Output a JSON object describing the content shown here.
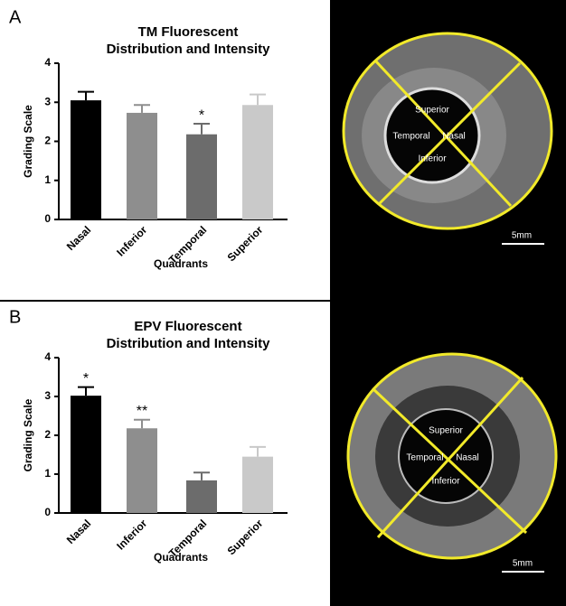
{
  "panel_labels": [
    "A",
    "B"
  ],
  "chart_data": [
    {
      "type": "bar",
      "title": [
        "TM Fluorescent",
        "Distribution and Intensity"
      ],
      "x_label": "Quadrants",
      "y_label": "Grading Scale",
      "categories": [
        "Nasal",
        "Inferior",
        "Temporal",
        "Superior"
      ],
      "values": [
        3.05,
        2.73,
        2.18,
        2.93
      ],
      "errors": [
        0.22,
        0.2,
        0.27,
        0.27
      ],
      "value_annotations": [
        null,
        null,
        "*",
        null
      ],
      "colors": [
        "#000000",
        "#8e8e8e",
        "#6c6c6c",
        "#c9c9c9"
      ],
      "ylim": [
        0,
        4
      ],
      "yticks": [
        0,
        1,
        2,
        3,
        4
      ]
    },
    {
      "type": "bar",
      "title": [
        "EPV Fluorescent",
        "Distribution and Intensity"
      ],
      "x_label": "Quadrants",
      "y_label": "Grading Scale",
      "categories": [
        "Nasal",
        "Inferior",
        "Temporal",
        "Superior"
      ],
      "values": [
        3.02,
        2.18,
        0.84,
        1.45
      ],
      "errors": [
        0.22,
        0.22,
        0.2,
        0.25
      ],
      "value_annotations": [
        "*",
        "**",
        null,
        null
      ],
      "colors": [
        "#000000",
        "#8e8e8e",
        "#6c6c6c",
        "#c9c9c9"
      ],
      "ylim": [
        0,
        4
      ],
      "yticks": [
        0,
        1,
        2,
        3,
        4
      ]
    }
  ],
  "images": [
    {
      "labels": [
        "Superior",
        "Temporal",
        "Nasal",
        "Inferior"
      ],
      "scale_bar": "5mm"
    },
    {
      "labels": [
        "Superior",
        "Temporal",
        "Nasal",
        "Inferior"
      ],
      "scale_bar": "5mm"
    }
  ]
}
